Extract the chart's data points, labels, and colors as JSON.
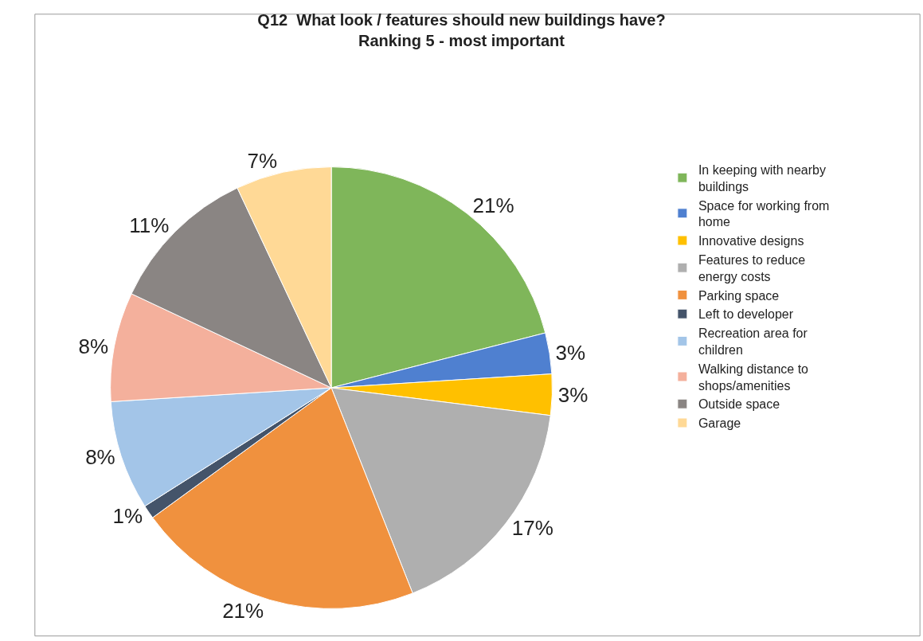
{
  "chart_data": {
    "type": "pie",
    "title": "Q12  What look / features should new buildings have?\nRanking 5 - most important",
    "categories": [
      "In keeping with nearby buildings",
      "Space for working from home",
      "Innovative designs",
      "Features to reduce energy costs",
      "Parking space",
      "Left to developer",
      "Recreation area for children",
      "Walking distance to shops/amenities",
      "Outside space",
      "Garage"
    ],
    "values": [
      21,
      3,
      3,
      17,
      21,
      1,
      8,
      8,
      11,
      7
    ],
    "value_labels": [
      "21%",
      "3%",
      "3%",
      "17%",
      "21%",
      "1%",
      "8%",
      "8%",
      "11%",
      "7%"
    ],
    "colors": [
      "#7fb65a",
      "#4f80d0",
      "#ffc000",
      "#afafaf",
      "#f0913e",
      "#44546a",
      "#a3c5e8",
      "#f4b09c",
      "#8a8583",
      "#ffd996"
    ],
    "legend": "right"
  }
}
